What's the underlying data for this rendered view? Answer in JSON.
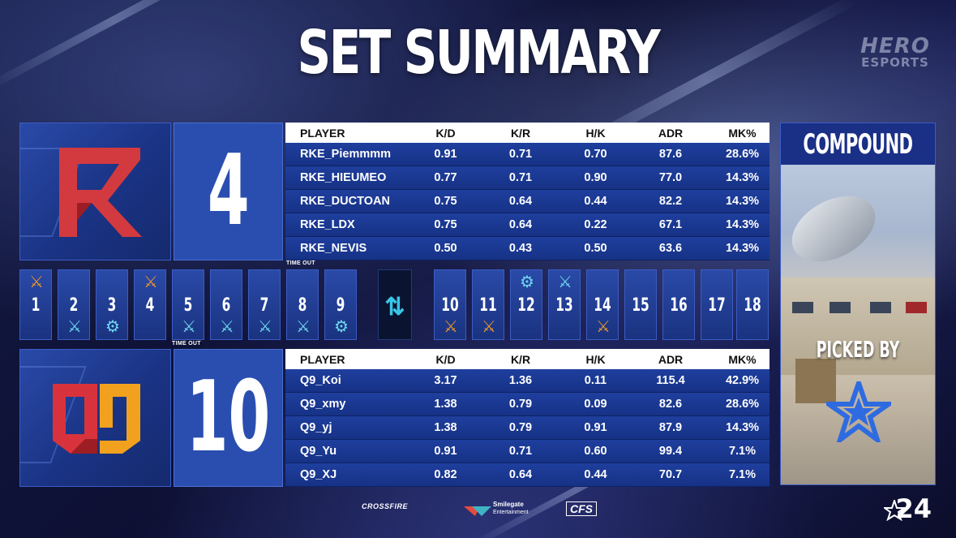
{
  "title": "SET SUMMARY",
  "brand": {
    "line1": "HERO",
    "line2": "ESPORTS"
  },
  "team_a": {
    "score": "4",
    "columns": [
      "PLAYER",
      "K/D",
      "K/R",
      "H/K",
      "ADR",
      "MK%"
    ],
    "players": [
      {
        "name": "RKE_Piemmmm",
        "kd": "0.91",
        "kr": "0.71",
        "hk": "0.70",
        "adr": "87.6",
        "mk": "28.6%"
      },
      {
        "name": "RKE_HIEUMEO",
        "kd": "0.77",
        "kr": "0.71",
        "hk": "0.90",
        "adr": "77.0",
        "mk": "14.3%"
      },
      {
        "name": "RKE_DUCTOAN",
        "kd": "0.75",
        "kr": "0.64",
        "hk": "0.44",
        "adr": "82.2",
        "mk": "14.3%"
      },
      {
        "name": "RKE_LDX",
        "kd": "0.75",
        "kr": "0.64",
        "hk": "0.22",
        "adr": "67.1",
        "mk": "14.3%"
      },
      {
        "name": "RKE_NEVIS",
        "kd": "0.50",
        "kr": "0.43",
        "hk": "0.50",
        "adr": "63.6",
        "mk": "14.3%"
      }
    ]
  },
  "team_b": {
    "score": "10",
    "columns": [
      "PLAYER",
      "K/D",
      "K/R",
      "H/K",
      "ADR",
      "MK%"
    ],
    "players": [
      {
        "name": "Q9_Koi",
        "kd": "3.17",
        "kr": "1.36",
        "hk": "0.11",
        "adr": "115.4",
        "mk": "42.9%"
      },
      {
        "name": "Q9_xmy",
        "kd": "1.38",
        "kr": "0.79",
        "hk": "0.09",
        "adr": "82.6",
        "mk": "28.6%"
      },
      {
        "name": "Q9_yj",
        "kd": "1.38",
        "kr": "0.79",
        "hk": "0.91",
        "adr": "87.9",
        "mk": "14.3%"
      },
      {
        "name": "Q9_Yu",
        "kd": "0.91",
        "kr": "0.71",
        "hk": "0.60",
        "adr": "99.4",
        "mk": "7.1%"
      },
      {
        "name": "Q9_XJ",
        "kd": "0.82",
        "kr": "0.64",
        "hk": "0.44",
        "adr": "70.7",
        "mk": "7.1%"
      }
    ]
  },
  "timeout_label": "TIME OUT",
  "rounds": {
    "r1": "1",
    "r2": "2",
    "r3": "3",
    "r4": "4",
    "r5": "5",
    "r6": "6",
    "r7": "7",
    "r8": "8",
    "r9": "9",
    "r10": "10",
    "r11": "11",
    "r12": "12",
    "r13": "13",
    "r14": "14",
    "r15": "15",
    "r16": "16",
    "r17": "17",
    "r18": "18"
  },
  "round_icons": {
    "elimination": "crossed-guns-icon",
    "defuse": "gear-defuse-icon",
    "side_swap": "side-swap-icon"
  },
  "colors": {
    "team_a_win": "#e8952c",
    "team_b_win": "#6fd8ef",
    "panel_blue": "#1f3f9e"
  },
  "map": {
    "name": "COMPOUND",
    "picked_by_label": "PICKED BY"
  },
  "sponsors": {
    "crossfire": "CROSSFIRE",
    "smilegate": "Smilegate",
    "smilegate_sub": "Entertainment",
    "cfs": "CFS"
  },
  "season_mark": "24"
}
